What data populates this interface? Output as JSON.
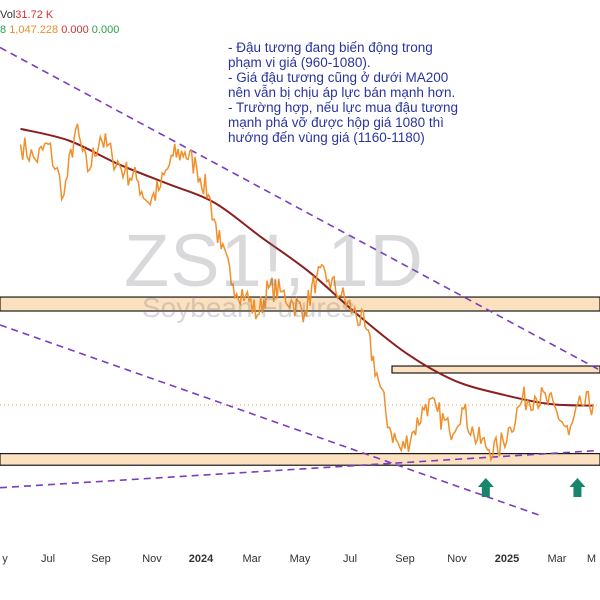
{
  "header": {
    "vol_label": "Vol",
    "vol_value": "31.72 K",
    "row2_lead": "8",
    "row2_values": [
      "1,047.228",
      "0.000",
      "0.000"
    ]
  },
  "watermark": {
    "symbol": "ZS1!, 1D",
    "name": "Soybean Futures"
  },
  "annotation": {
    "lines": [
      "- Đậu tương đang biến động trong",
      "phạm vi giá (960-1080).",
      "- Giá đậu tương cũng ở dưới MA200",
      "nên vẫn bị chịu áp lực bán mạnh hơn.",
      "- Trường hợp, nếu lực mua đậu tương",
      "mạnh phá vỡ được hộp giá 1080 thì",
      "hướng đến vùng giá (1160-1180)"
    ]
  },
  "colors": {
    "price": "#f0902a",
    "ma200": "#8b1f1f",
    "trendline": "#7a3cc0",
    "zone_fill": "#fbe1bf",
    "arrow": "#17856a",
    "note_text": "#2a34a0"
  },
  "chart_data": {
    "type": "line",
    "symbol": "ZS1!, 1D",
    "name": "Soybean Futures",
    "x_ticks": [
      "y",
      "Jul",
      "Sep",
      "Nov",
      "2024",
      "Mar",
      "May",
      "Jul",
      "Sep",
      "Nov",
      "2025",
      "Mar",
      "M"
    ],
    "bold_ticks": [
      "2024",
      "2025"
    ],
    "series": [
      {
        "key": "price",
        "x": [
          "2023-05-01",
          "2023-05-20",
          "2023-06-05",
          "2023-06-25",
          "2023-07-10",
          "2023-07-25",
          "2023-08-10",
          "2023-08-25",
          "2023-09-10",
          "2023-09-25",
          "2023-10-10",
          "2023-10-25",
          "2023-11-10",
          "2023-11-25",
          "2023-12-10",
          "2023-12-25",
          "2024-01-10",
          "2024-01-25",
          "2024-02-10",
          "2024-02-25",
          "2024-03-10",
          "2024-03-25",
          "2024-04-10",
          "2024-04-25",
          "2024-05-10",
          "2024-05-25",
          "2024-06-10",
          "2024-06-25",
          "2024-07-10",
          "2024-07-25",
          "2024-08-10",
          "2024-08-25",
          "2024-09-10",
          "2024-09-25",
          "2024-10-10",
          "2024-10-25",
          "2024-11-10",
          "2024-11-25",
          "2024-12-10",
          "2024-12-25",
          "2025-01-10",
          "2025-01-25",
          "2025-02-10",
          "2025-02-25",
          "2025-03-10",
          "2025-03-25",
          "2025-04-10",
          "2025-04-25"
        ],
        "values": [
          1375,
          1355,
          1375,
          1310,
          1395,
          1340,
          1385,
          1360,
          1340,
          1330,
          1300,
          1320,
          1360,
          1365,
          1345,
          1310,
          1240,
          1195,
          1180,
          1155,
          1190,
          1185,
          1170,
          1160,
          1205,
          1200,
          1180,
          1160,
          1140,
          1080,
          1010,
          980,
          1005,
          1040,
          1030,
          1005,
          1035,
          1000,
          985,
          980,
          1010,
          1045,
          1050,
          1045,
          1030,
          1000,
          1040,
          1040
        ]
      }
    ],
    "ma200": {
      "x": [
        "2023-05-01",
        "2023-07-01",
        "2023-09-01",
        "2023-11-01",
        "2024-01-01",
        "2024-03-01",
        "2024-05-01",
        "2024-07-01",
        "2024-09-01",
        "2024-11-01",
        "2025-01-01",
        "2025-03-01",
        "2025-04-25"
      ],
      "values": [
        1395,
        1380,
        1350,
        1325,
        1300,
        1255,
        1210,
        1155,
        1105,
        1070,
        1052,
        1040,
        1038
      ]
    },
    "zones": [
      {
        "low": 1160,
        "high": 1178
      },
      {
        "low": 1080,
        "high": 1089
      },
      {
        "low": 961,
        "high": 976
      }
    ],
    "trendlines": [
      {
        "from": [
          "2023-04-05",
          1500
        ],
        "to": [
          "2025-05-01",
          1085
        ]
      },
      {
        "from": [
          "2023-04-05",
          1142
        ],
        "to": [
          "2025-02-20",
          895
        ]
      },
      {
        "from": [
          "2023-04-05",
          932
        ],
        "to": [
          "2025-05-01",
          980
        ]
      }
    ],
    "arrows": [
      "2024-12-10",
      "2025-04-05"
    ],
    "grid": false
  }
}
